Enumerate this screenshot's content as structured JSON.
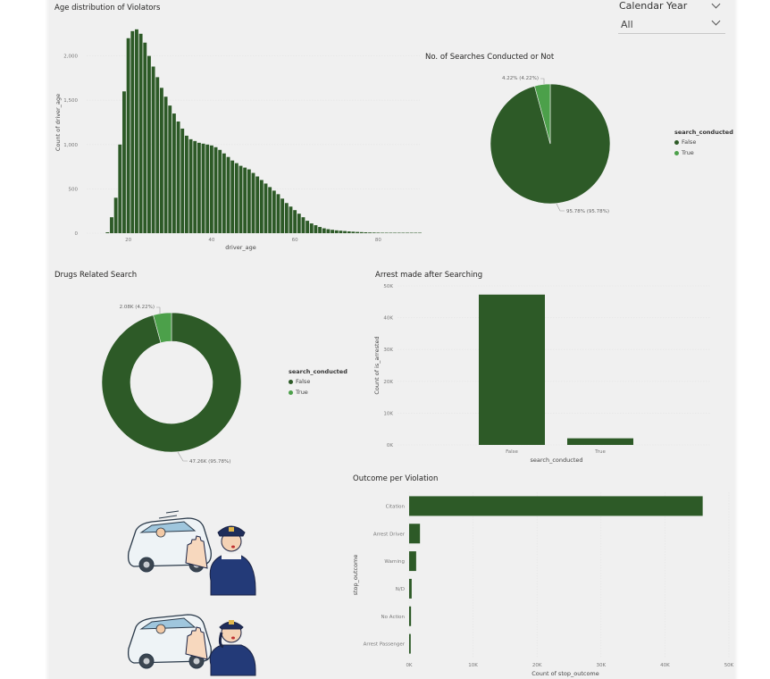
{
  "slicer": {
    "label": "Calendar Year",
    "value": "All"
  },
  "colors": {
    "dark_green": "#2d5a27",
    "light_green": "#4ca04a",
    "grid": "#e4e4e4",
    "axis_text": "#777777"
  },
  "chart_data": [
    {
      "id": "age",
      "type": "bar",
      "title": "Age distribution of Violators",
      "xlabel": "driver_age",
      "ylabel": "Count of driver_age",
      "ylim": [
        0,
        2500
      ],
      "yticks": [
        "0",
        "500",
        "1,000",
        "1,500",
        "2,000"
      ],
      "xticks": [
        "20",
        "40",
        "60",
        "80"
      ],
      "x": [
        15,
        16,
        17,
        18,
        19,
        20,
        21,
        22,
        23,
        24,
        25,
        26,
        27,
        28,
        29,
        30,
        31,
        32,
        33,
        34,
        35,
        36,
        37,
        38,
        39,
        40,
        41,
        42,
        43,
        44,
        45,
        46,
        47,
        48,
        49,
        50,
        51,
        52,
        53,
        54,
        55,
        56,
        57,
        58,
        59,
        60,
        61,
        62,
        63,
        64,
        65,
        66,
        67,
        68,
        69,
        70,
        71,
        72,
        73,
        74,
        75,
        76,
        77,
        78,
        79,
        80,
        81,
        82,
        83,
        84,
        85,
        86,
        87,
        88,
        89,
        90
      ],
      "values": [
        10,
        180,
        400,
        1000,
        1600,
        2200,
        2280,
        2300,
        2250,
        2150,
        2000,
        1880,
        1760,
        1640,
        1540,
        1440,
        1350,
        1260,
        1180,
        1100,
        1060,
        1040,
        1020,
        1010,
        1000,
        990,
        970,
        940,
        900,
        860,
        820,
        790,
        760,
        740,
        720,
        680,
        640,
        600,
        560,
        520,
        480,
        440,
        390,
        340,
        300,
        260,
        220,
        180,
        140,
        110,
        90,
        70,
        55,
        45,
        38,
        32,
        28,
        24,
        20,
        17,
        14,
        12,
        10,
        8,
        7,
        6,
        5,
        4,
        4,
        3,
        3,
        2,
        2,
        2,
        1,
        1
      ]
    },
    {
      "id": "searches",
      "type": "pie",
      "title": "No. of Searches Conducted or Not",
      "legend_title": "search_conducted",
      "slices": [
        {
          "label": "False",
          "value": 95.78,
          "data_label": "95.78% (95.78%)",
          "color": "#2d5a27"
        },
        {
          "label": "True",
          "value": 4.22,
          "data_label": "4.22% (4.22%)",
          "color": "#4ca04a"
        }
      ]
    },
    {
      "id": "drugs",
      "type": "pie",
      "title": "Drugs Related Search",
      "legend_title": "search_conducted",
      "donut": true,
      "slices": [
        {
          "label": "False",
          "value": 47.26,
          "data_label": "47.26K (95.78%)",
          "color": "#2d5a27"
        },
        {
          "label": "True",
          "value": 2.08,
          "data_label": "2.08K (4.22%)",
          "color": "#4ca04a"
        }
      ]
    },
    {
      "id": "arrest",
      "type": "bar",
      "title": "Arrest made after Searching",
      "xlabel": "search_conducted",
      "ylabel": "Count of is_arrested",
      "ylim": [
        0,
        50000
      ],
      "yticks": [
        "0K",
        "10K",
        "20K",
        "30K",
        "40K",
        "50K"
      ],
      "categories": [
        "False",
        "True"
      ],
      "values": [
        47260,
        2080
      ]
    },
    {
      "id": "outcome",
      "type": "bar",
      "orientation": "horizontal",
      "title": "Outcome per Violation",
      "xlabel": "Count of stop_outcome",
      "ylabel": "stop_outcome",
      "xlim": [
        0,
        50000
      ],
      "xticks": [
        "0K",
        "10K",
        "20K",
        "30K",
        "40K",
        "50K"
      ],
      "categories": [
        "Citation",
        "Arrest Driver",
        "Warning",
        "N/D",
        "No Action",
        "Arrest Passenger"
      ],
      "values": [
        45900,
        1700,
        1100,
        400,
        300,
        250
      ]
    }
  ]
}
